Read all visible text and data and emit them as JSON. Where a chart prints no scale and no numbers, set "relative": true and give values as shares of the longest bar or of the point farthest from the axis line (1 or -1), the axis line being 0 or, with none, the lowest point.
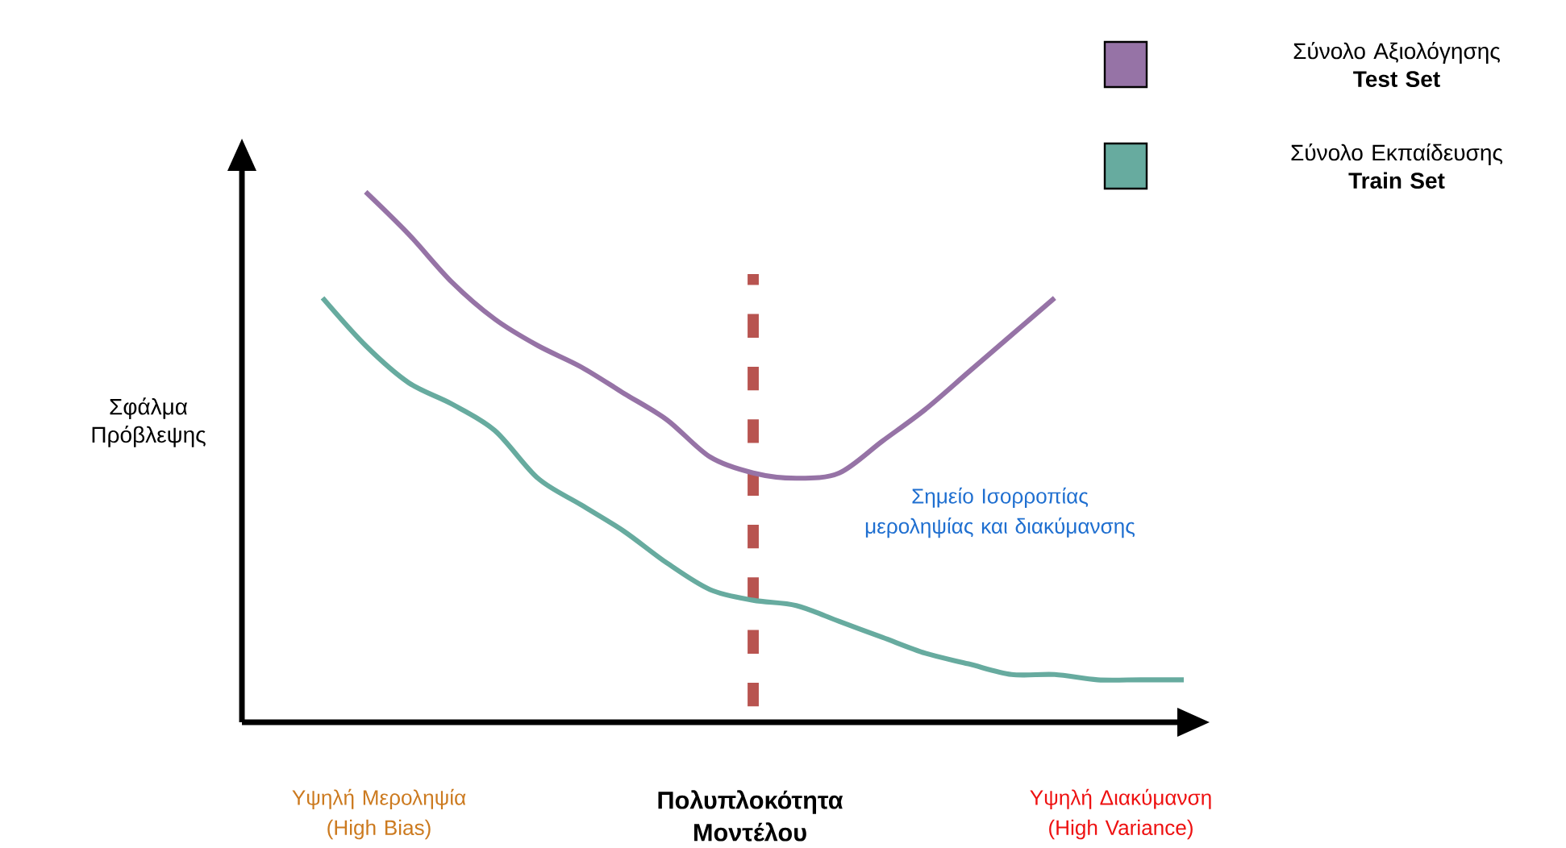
{
  "chart_data": {
    "type": "line",
    "relative": true,
    "xlabel": "Πολυπλοκότητα Μοντέλου",
    "ylabel": "Σφάλμα Πρόβλεψης",
    "categories": [
      null,
      null,
      null,
      null,
      null,
      null,
      null,
      null,
      null,
      null,
      null,
      null,
      null,
      null,
      null,
      null,
      null,
      null,
      null,
      null,
      null
    ],
    "series": [
      {
        "name": "Σύνολο Αξιολόγησης **Test Set**",
        "color": "#9673a6",
        "values": [
          null,
          1.0,
          0.92,
          0.83,
          0.76,
          0.71,
          0.67,
          0.62,
          0.57,
          0.5,
          0.47,
          0.46,
          0.47,
          0.53,
          0.59,
          0.66,
          0.73,
          0.8,
          null,
          null,
          null
        ]
      },
      {
        "name": "Σύνολο Εκπαίδευσης **Train Set**",
        "color": "#67ab9f",
        "values": [
          0.8,
          0.71,
          0.64,
          0.6,
          0.55,
          0.46,
          0.41,
          0.36,
          0.3,
          0.25,
          0.23,
          0.22,
          0.19,
          0.16,
          0.13,
          0.11,
          0.09,
          0.09,
          0.08,
          0.08,
          0.08
        ]
      }
    ],
    "annotations": [
      "Υψηλή Μεροληψία (High Bias)",
      "Υψηλή Διακύμανση (High Variance)",
      "Σημείο Ισορροπίας μεροληψίας και διακύμανσης"
    ],
    "legend": "top right",
    "line_style": "solid",
    "marker": "none"
  }
}
